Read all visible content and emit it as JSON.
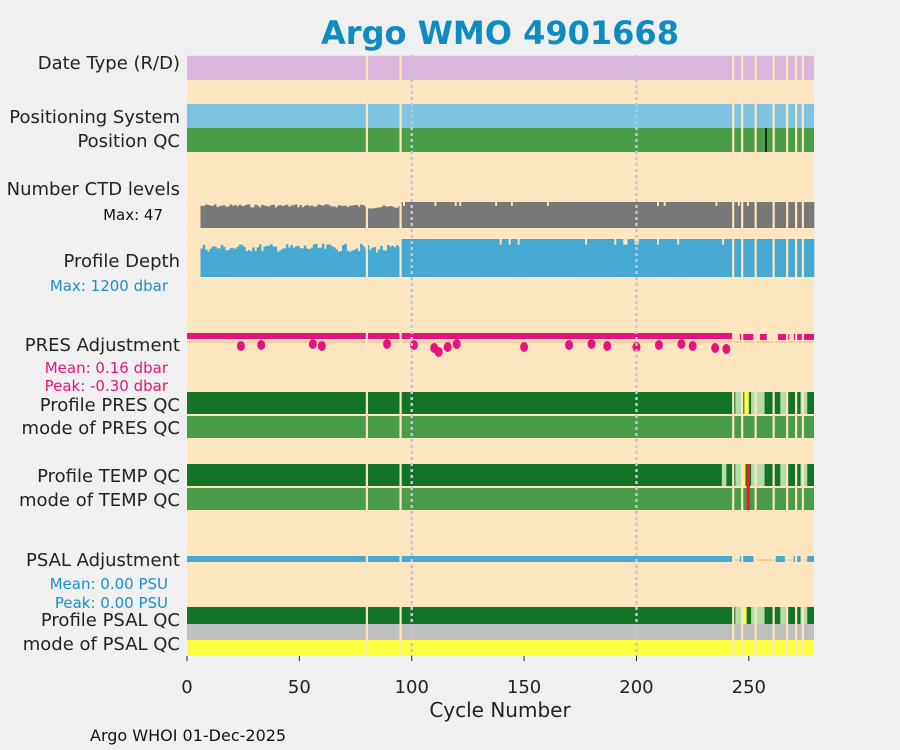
{
  "chart_data": {
    "type": "bar",
    "title": "Argo WMO 4901668",
    "xlabel": "Cycle Number",
    "xlim": [
      0,
      279
    ],
    "xticks": [
      0,
      50,
      100,
      150,
      200,
      250
    ],
    "x_tick_labels": [
      "0",
      "50",
      "100",
      "150",
      "200",
      "250"
    ],
    "dotted_marker_cycles": [
      100,
      200
    ],
    "gap_cycles": [
      80,
      95,
      243,
      247,
      253,
      261,
      267,
      271,
      274
    ],
    "row_labels": {
      "date_type": "Date Type (R/D)",
      "positioning_system": "Positioning System",
      "position_qc": "Position QC",
      "ctd_levels": "Number CTD levels",
      "ctd_levels_max": "Max: 47",
      "profile_depth": "Profile Depth",
      "profile_depth_max": "Max: 1200 dbar",
      "pres_adjustment": "PRES Adjustment",
      "pres_mean": "Mean: 0.16 dbar",
      "pres_peak": "Peak: -0.30 dbar",
      "profile_pres_qc": "Profile PRES QC",
      "mode_pres_qc": "mode of PRES QC",
      "profile_temp_qc": "Profile TEMP QC",
      "mode_temp_qc": "mode of TEMP QC",
      "psal_adjustment": "PSAL Adjustment",
      "psal_mean": "Mean: 0.00 PSU",
      "psal_peak": "Peak: 0.00 PSU",
      "profile_psal_qc": "Profile PSAL QC",
      "mode_psal_qc": "mode of PSAL QC"
    },
    "series": [
      {
        "name": "Number CTD levels",
        "max": 47,
        "unit": "levels",
        "typical": [
          [
            0,
            6,
            0
          ],
          [
            6,
            80,
            43
          ],
          [
            80,
            95,
            41
          ],
          [
            95,
            279,
            47
          ]
        ]
      },
      {
        "name": "Profile Depth",
        "max": 1200,
        "unit": "dbar",
        "typical": [
          [
            0,
            6,
            0
          ],
          [
            6,
            80,
            1050
          ],
          [
            80,
            95,
            1020
          ],
          [
            95,
            279,
            1200
          ]
        ]
      },
      {
        "name": "PRES Adjustment",
        "mean": 0.16,
        "peak": -0.3,
        "unit": "dbar"
      },
      {
        "name": "PSAL Adjustment",
        "mean": 0.0,
        "peak": 0.0,
        "unit": "PSU"
      }
    ],
    "colors": {
      "background": "#fde6bf",
      "date_type": "#dbb5dc",
      "positioning": "#7ec4e0",
      "qc_good": "#4a9c48",
      "qc_profile_a": "#137428",
      "qc_light": "#b5dca8",
      "qc_yellow": "#fdfd40",
      "qc_red": "#e8202a",
      "ctd": "#787878",
      "depth": "#45a9d2",
      "pres": "#e5147c",
      "psal": "#45a9d2",
      "grey": "#c0c0c0",
      "title": "#0f8cbf"
    }
  },
  "footer": "Argo WHOI 01-Dec-2025"
}
